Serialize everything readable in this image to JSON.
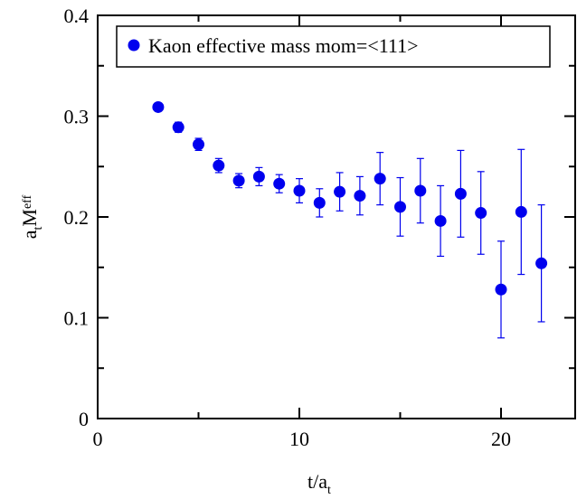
{
  "chart_data": {
    "type": "scatter",
    "title": "",
    "xlabel": {
      "main": "t/a",
      "sub": "t"
    },
    "ylabel": {
      "main": "a",
      "sub1": "t",
      "mid": "M",
      "sub2": "eff"
    },
    "xlim": [
      0,
      24
    ],
    "ylim": [
      0,
      0.4
    ],
    "xticks": [
      0,
      10,
      20
    ],
    "xtick_labels": [
      "0",
      "10",
      "20"
    ],
    "yticks": [
      0,
      0.1,
      0.2,
      0.3,
      0.4
    ],
    "ytick_labels": [
      "0",
      "0.1",
      "0.2",
      "0.3",
      "0.4"
    ],
    "grid": false,
    "legend_position": "top",
    "marker_color": "#0000ee",
    "series": [
      {
        "name": "Kaon effective mass mom=<111>",
        "x": [
          3,
          4,
          5,
          6,
          7,
          8,
          9,
          10,
          11,
          12,
          13,
          14,
          15,
          16,
          17,
          18,
          19,
          20,
          21,
          22
        ],
        "y": [
          0.309,
          0.289,
          0.272,
          0.251,
          0.236,
          0.24,
          0.233,
          0.226,
          0.214,
          0.225,
          0.221,
          0.238,
          0.21,
          0.226,
          0.196,
          0.223,
          0.204,
          0.128,
          0.205,
          0.154
        ],
        "yerr": [
          0.004,
          0.005,
          0.006,
          0.007,
          0.007,
          0.009,
          0.009,
          0.012,
          0.014,
          0.019,
          0.019,
          0.026,
          0.029,
          0.032,
          0.035,
          0.043,
          0.041,
          0.048,
          0.062,
          0.058
        ]
      }
    ]
  }
}
